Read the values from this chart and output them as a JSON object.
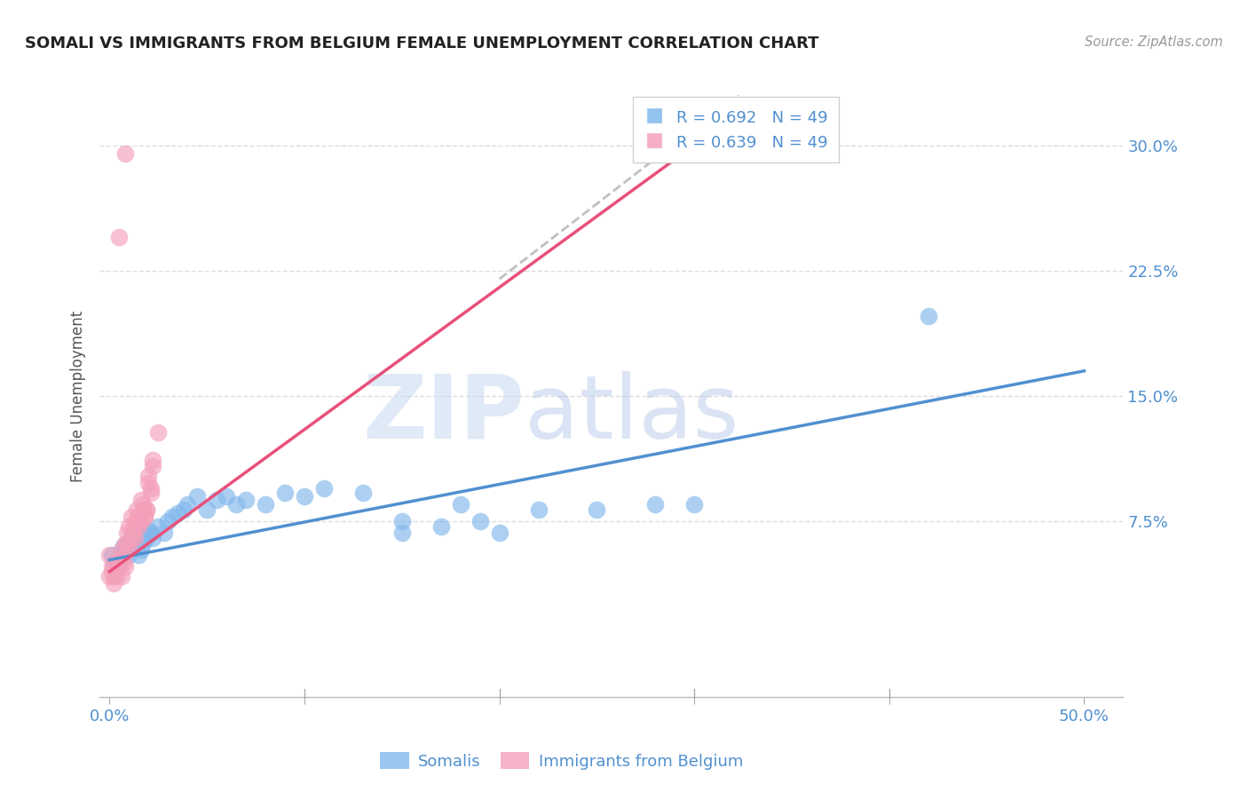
{
  "title": "SOMALI VS IMMIGRANTS FROM BELGIUM FEMALE UNEMPLOYMENT CORRELATION CHART",
  "source": "Source: ZipAtlas.com",
  "ylabel": "Female Unemployment",
  "xlim": [
    -0.005,
    0.52
  ],
  "ylim": [
    -0.03,
    0.33
  ],
  "xtick_positions": [
    0.0,
    0.1,
    0.2,
    0.3,
    0.4,
    0.5
  ],
  "xtick_labels": [
    "0.0%",
    "",
    "",
    "",
    "",
    "50.0%"
  ],
  "ytick_positions": [
    0.075,
    0.15,
    0.225,
    0.3
  ],
  "ytick_labels": [
    "7.5%",
    "15.0%",
    "22.5%",
    "30.0%"
  ],
  "legend_label1": "Somalis",
  "legend_label2": "Immigrants from Belgium",
  "somali_color": "#82B8EC",
  "belgium_color": "#F4A0BA",
  "somali_line_color": "#5090D0",
  "belgium_line_color": "#E8507A",
  "somali_x": [
    0.001,
    0.003,
    0.005,
    0.007,
    0.008,
    0.009,
    0.01,
    0.011,
    0.012,
    0.013,
    0.014,
    0.015,
    0.016,
    0.017,
    0.018,
    0.019,
    0.02,
    0.021,
    0.022,
    0.025,
    0.028,
    0.03,
    0.032,
    0.035,
    0.038,
    0.04,
    0.045,
    0.05,
    0.055,
    0.06,
    0.065,
    0.07,
    0.08,
    0.09,
    0.1,
    0.11,
    0.13,
    0.15,
    0.18,
    0.2,
    0.22,
    0.25,
    0.28,
    0.3,
    0.15,
    0.17,
    0.19,
    0.42,
    0.002
  ],
  "somali_y": [
    0.055,
    0.045,
    0.05,
    0.06,
    0.058,
    0.062,
    0.055,
    0.06,
    0.065,
    0.062,
    0.06,
    0.055,
    0.058,
    0.062,
    0.068,
    0.065,
    0.07,
    0.068,
    0.065,
    0.072,
    0.068,
    0.075,
    0.078,
    0.08,
    0.082,
    0.085,
    0.09,
    0.082,
    0.088,
    0.09,
    0.085,
    0.088,
    0.085,
    0.092,
    0.09,
    0.095,
    0.092,
    0.075,
    0.085,
    0.068,
    0.082,
    0.082,
    0.085,
    0.085,
    0.068,
    0.072,
    0.075,
    0.198,
    0.05
  ],
  "belgium_x": [
    0.0,
    0.001,
    0.002,
    0.003,
    0.004,
    0.005,
    0.006,
    0.007,
    0.008,
    0.009,
    0.01,
    0.011,
    0.012,
    0.013,
    0.014,
    0.015,
    0.016,
    0.017,
    0.018,
    0.019,
    0.02,
    0.021,
    0.022,
    0.0,
    0.001,
    0.002,
    0.003,
    0.004,
    0.005,
    0.006,
    0.007,
    0.008,
    0.009,
    0.01,
    0.011,
    0.012,
    0.013,
    0.014,
    0.015,
    0.016,
    0.017,
    0.018,
    0.019,
    0.02,
    0.021,
    0.022,
    0.025,
    0.005,
    0.008
  ],
  "belgium_y": [
    0.055,
    0.048,
    0.042,
    0.05,
    0.052,
    0.048,
    0.058,
    0.055,
    0.062,
    0.068,
    0.072,
    0.078,
    0.07,
    0.075,
    0.082,
    0.078,
    0.088,
    0.085,
    0.078,
    0.082,
    0.098,
    0.092,
    0.108,
    0.042,
    0.045,
    0.038,
    0.048,
    0.042,
    0.052,
    0.042,
    0.05,
    0.048,
    0.062,
    0.058,
    0.065,
    0.068,
    0.065,
    0.075,
    0.072,
    0.075,
    0.082,
    0.078,
    0.082,
    0.102,
    0.095,
    0.112,
    0.128,
    0.245,
    0.295
  ],
  "background_color": "#FFFFFF",
  "grid_color": "#DDDDDD",
  "somali_trendline": [
    0.0,
    0.5,
    0.052,
    0.165
  ],
  "belgium_trendline": [
    0.0,
    0.3,
    0.045,
    0.3
  ],
  "dashed_line": [
    0.2,
    0.4,
    0.22,
    0.4
  ]
}
